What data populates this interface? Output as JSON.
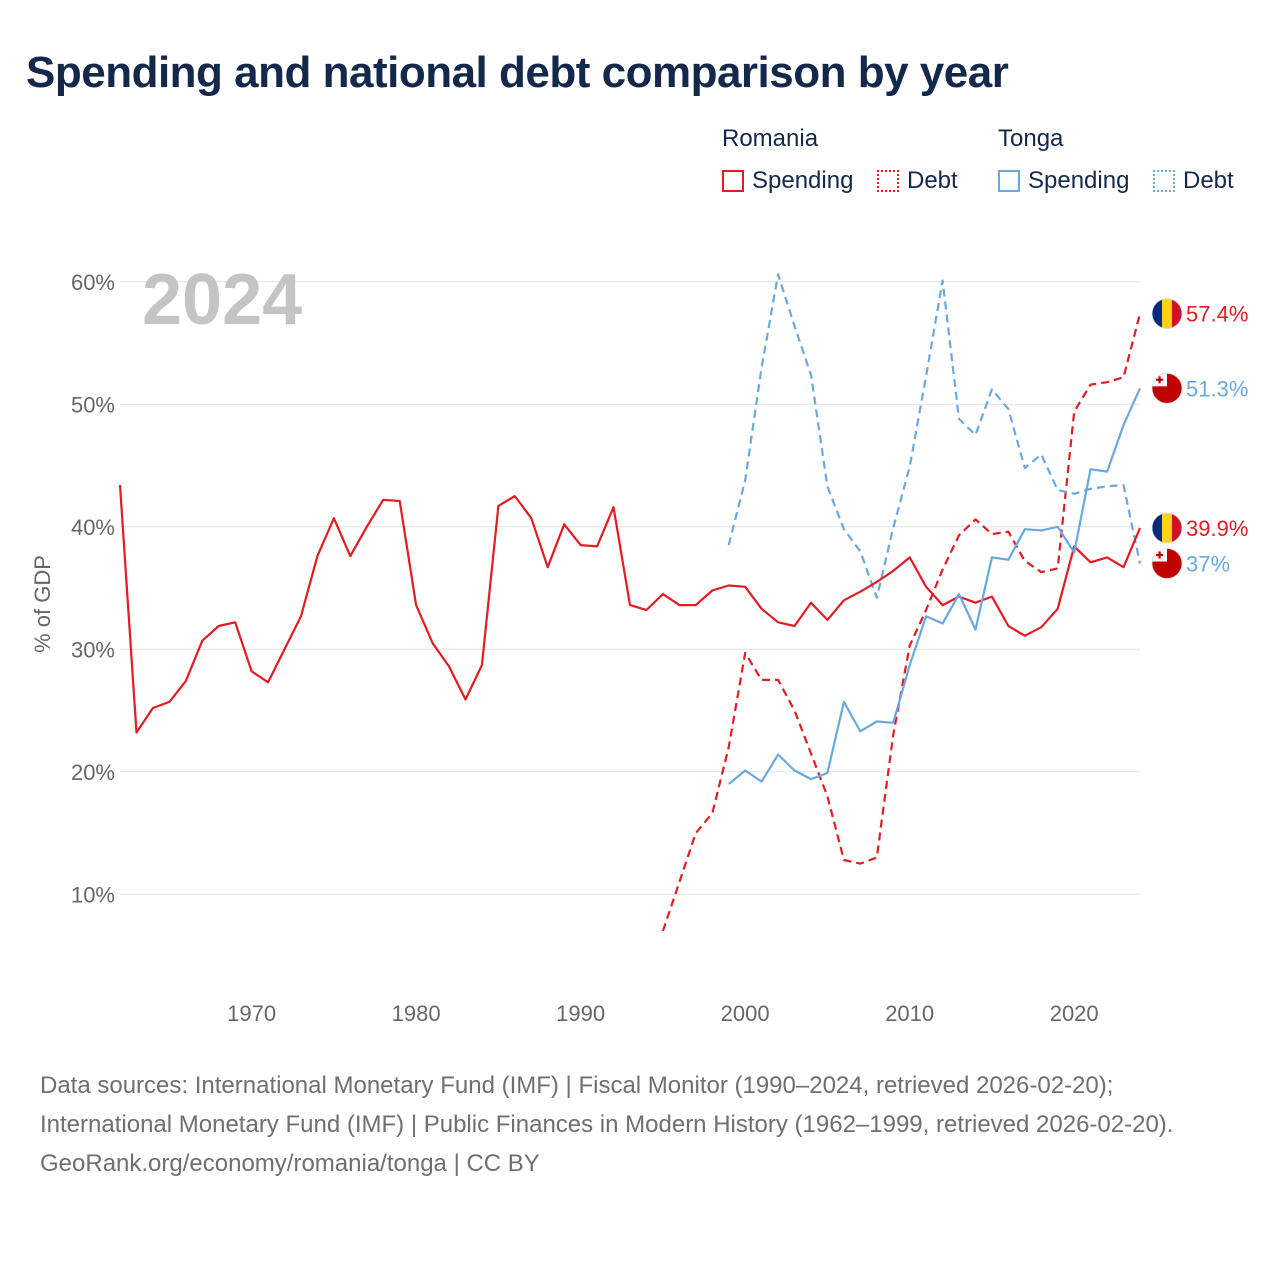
{
  "chart_data": {
    "type": "line",
    "title": "Spending and national debt comparison by year",
    "ylabel": "% of GDP",
    "xlabel": "",
    "xlim": [
      1962,
      2024
    ],
    "ylim": [
      3,
      63
    ],
    "yticks": [
      10,
      20,
      30,
      40,
      50,
      60
    ],
    "ytick_labels": [
      "10%",
      "20%",
      "30%",
      "40%",
      "50%",
      "60%"
    ],
    "xticks": [
      1970,
      1980,
      1990,
      2000,
      2010,
      2020
    ],
    "xtick_labels": [
      "1970",
      "1980",
      "1990",
      "2000",
      "2010",
      "2020"
    ],
    "year_label": "2024",
    "legend": {
      "groups": [
        {
          "country": "Romania",
          "items": [
            "Spending",
            "Debt"
          ]
        },
        {
          "country": "Tonga",
          "items": [
            "Spending",
            "Debt"
          ]
        }
      ]
    },
    "series": [
      {
        "name": "Romania Spending",
        "country": "Romania",
        "metric": "Spending",
        "color": "#e31b23",
        "dash": false,
        "x": [
          1962,
          1963,
          1964,
          1965,
          1966,
          1967,
          1968,
          1969,
          1970,
          1971,
          1972,
          1973,
          1974,
          1975,
          1976,
          1977,
          1978,
          1979,
          1980,
          1981,
          1982,
          1983,
          1984,
          1985,
          1986,
          1987,
          1988,
          1989,
          1990,
          1991,
          1992,
          1993,
          1994,
          1995,
          1996,
          1997,
          1998,
          1999,
          2000,
          2001,
          2002,
          2003,
          2004,
          2005,
          2006,
          2007,
          2008,
          2009,
          2010,
          2011,
          2012,
          2013,
          2014,
          2015,
          2016,
          2017,
          2018,
          2019,
          2020,
          2021,
          2022,
          2023,
          2024
        ],
        "values": [
          43.4,
          23.2,
          25.2,
          25.7,
          27.4,
          30.7,
          31.9,
          32.2,
          28.2,
          27.3,
          30.0,
          32.7,
          37.6,
          40.7,
          37.6,
          40.0,
          42.2,
          42.1,
          33.6,
          30.5,
          28.6,
          25.9,
          28.7,
          41.7,
          42.5,
          40.7,
          36.7,
          40.2,
          38.5,
          38.4,
          41.6,
          33.6,
          33.2,
          34.5,
          33.6,
          33.6,
          34.8,
          35.2,
          35.1,
          33.3,
          32.2,
          31.9,
          33.8,
          32.4,
          34.0,
          34.7,
          35.5,
          36.4,
          37.5,
          35.1,
          33.6,
          34.3,
          33.8,
          34.3,
          31.9,
          31.1,
          31.8,
          33.3,
          38.4,
          37.1,
          37.5,
          36.7,
          39.9
        ]
      },
      {
        "name": "Romania Debt",
        "country": "Romania",
        "metric": "Debt",
        "color": "#e31b23",
        "dash": true,
        "x": [
          1995,
          1996,
          1997,
          1998,
          1999,
          2000,
          2001,
          2002,
          2003,
          2004,
          2005,
          2006,
          2007,
          2008,
          2009,
          2010,
          2011,
          2012,
          2013,
          2014,
          2015,
          2016,
          2017,
          2018,
          2019,
          2020,
          2021,
          2022,
          2023,
          2024
        ],
        "values": [
          7.0,
          11.0,
          15.0,
          16.6,
          22.0,
          29.7,
          27.5,
          27.5,
          25.0,
          21.5,
          18.0,
          12.8,
          12.5,
          13.0,
          23.0,
          30.3,
          33.2,
          36.5,
          39.3,
          40.6,
          39.4,
          39.6,
          37.2,
          36.3,
          36.6,
          49.4,
          51.6,
          51.8,
          52.2,
          57.4
        ]
      },
      {
        "name": "Tonga Spending",
        "country": "Tonga",
        "metric": "Spending",
        "color": "#6aa9e0",
        "dash": false,
        "x": [
          1999,
          2000,
          2001,
          2002,
          2003,
          2004,
          2005,
          2006,
          2007,
          2008,
          2009,
          2010,
          2011,
          2012,
          2013,
          2014,
          2015,
          2016,
          2017,
          2018,
          2019,
          2020,
          2021,
          2022,
          2023,
          2024
        ],
        "values": [
          19.0,
          20.1,
          19.2,
          21.4,
          20.1,
          19.4,
          19.9,
          25.7,
          23.3,
          24.1,
          24.0,
          28.7,
          32.7,
          32.1,
          34.5,
          31.6,
          37.5,
          37.3,
          39.8,
          39.7,
          40.0,
          37.9,
          44.7,
          44.5,
          48.3,
          51.3
        ]
      },
      {
        "name": "Tonga Debt",
        "country": "Tonga",
        "metric": "Debt",
        "color": "#6aa9e0",
        "dash": true,
        "x": [
          1999,
          2000,
          2001,
          2002,
          2003,
          2004,
          2005,
          2006,
          2007,
          2008,
          2009,
          2010,
          2011,
          2012,
          2013,
          2014,
          2015,
          2016,
          2017,
          2018,
          2019,
          2020,
          2021,
          2022,
          2023,
          2024
        ],
        "values": [
          38.5,
          43.8,
          53.0,
          60.6,
          56.4,
          52.4,
          43.3,
          39.8,
          38.0,
          34.2,
          39.9,
          44.9,
          52.3,
          60.1,
          48.8,
          47.5,
          51.2,
          49.6,
          44.8,
          45.9,
          43.0,
          42.7,
          43.1,
          43.3,
          43.4,
          37.0
        ]
      }
    ],
    "end_labels": [
      {
        "series": "Romania Debt",
        "text": "57.4%",
        "value": 57.4,
        "color": "#e31b23",
        "flag": "romania-flag"
      },
      {
        "series": "Tonga Spending",
        "text": "51.3%",
        "value": 51.3,
        "color": "#6aa9e0",
        "flag": "tonga-flag"
      },
      {
        "series": "Romania Spending",
        "text": "39.9%",
        "value": 39.9,
        "color": "#e31b23",
        "flag": "romania-flag"
      },
      {
        "series": "Tonga Debt",
        "text": "37%",
        "value": 37.0,
        "color": "#6aa9e0",
        "flag": "tonga-flag"
      }
    ]
  },
  "footer": {
    "sources": "Data sources: International Monetary Fund (IMF) | Fiscal Monitor (1990–2024, retrieved 2026-02-20); International Monetary Fund (IMF) | Public Finances in Modern History (1962–1999, retrieved 2026-02-20).",
    "attribution": "GeoRank.org/economy/romania/tonga | CC BY"
  },
  "colors": {
    "romania": "#e31b23",
    "tonga": "#6aa9e0",
    "title": "#14284b",
    "grid": "#e4e4e4",
    "axis_text": "#666666",
    "watermark_year": "#c4c4c4"
  }
}
